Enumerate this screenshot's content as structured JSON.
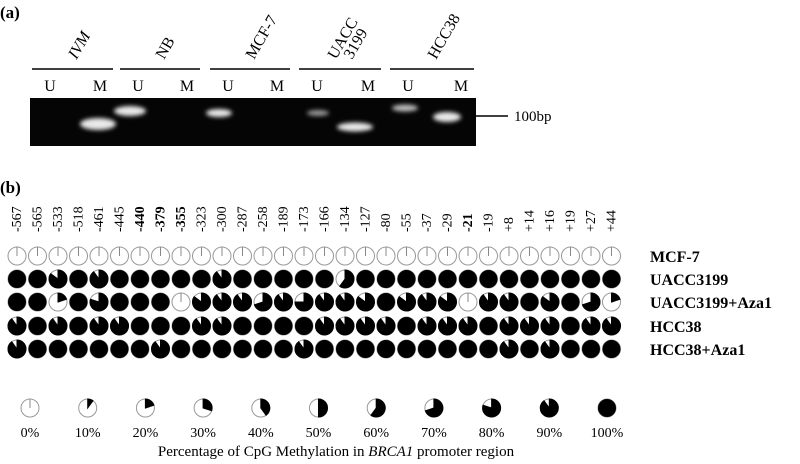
{
  "panel_a": {
    "label": "(a)",
    "samples": [
      {
        "lines": [
          "IVM"
        ],
        "lanes": [
          "U",
          "M"
        ]
      },
      {
        "lines": [
          "NB"
        ],
        "lanes": [
          "U",
          "M"
        ]
      },
      {
        "lines": [
          "MCF-7"
        ],
        "lanes": [
          "U",
          "M"
        ]
      },
      {
        "lines": [
          "UACC",
          "3199"
        ],
        "lanes": [
          "U",
          "M"
        ]
      },
      {
        "lines": [
          "HCC38"
        ],
        "lanes": [
          "U",
          "M"
        ]
      }
    ],
    "marker": "100bp"
  },
  "panel_b": {
    "label": "(b)",
    "positions": [
      {
        "text": "-567",
        "bold": false
      },
      {
        "text": "-565",
        "bold": false
      },
      {
        "text": "-533",
        "bold": false
      },
      {
        "text": "-518",
        "bold": false
      },
      {
        "text": "-461",
        "bold": false
      },
      {
        "text": "-445",
        "bold": false
      },
      {
        "text": "-440",
        "bold": true
      },
      {
        "text": "-379",
        "bold": true
      },
      {
        "text": "-355",
        "bold": true
      },
      {
        "text": "-323",
        "bold": false
      },
      {
        "text": "-300",
        "bold": false
      },
      {
        "text": "-287",
        "bold": false
      },
      {
        "text": "-258",
        "bold": false
      },
      {
        "text": "-189",
        "bold": false
      },
      {
        "text": "-173",
        "bold": false
      },
      {
        "text": "-166",
        "bold": false
      },
      {
        "text": "-134",
        "bold": false
      },
      {
        "text": "-127",
        "bold": false
      },
      {
        "text": "-80",
        "bold": false
      },
      {
        "text": "-55",
        "bold": false
      },
      {
        "text": "-37",
        "bold": false
      },
      {
        "text": "-29",
        "bold": false
      },
      {
        "text": "-21",
        "bold": true
      },
      {
        "text": "-19",
        "bold": false
      },
      {
        "text": "+8",
        "bold": false
      },
      {
        "text": "+14",
        "bold": false
      },
      {
        "text": "+16",
        "bold": false
      },
      {
        "text": "+19",
        "bold": false
      },
      {
        "text": "+27",
        "bold": false
      },
      {
        "text": "+44",
        "bold": false
      }
    ],
    "rows": [
      {
        "name": "MCF-7",
        "values": [
          0,
          0,
          0,
          0,
          0,
          0,
          0,
          0,
          0,
          0,
          0,
          0,
          0,
          0,
          0,
          0,
          0,
          0,
          0,
          0,
          0,
          0,
          0,
          0,
          0,
          0,
          0,
          0,
          0,
          0
        ]
      },
      {
        "name": "UACC3199",
        "values": [
          100,
          100,
          85,
          100,
          90,
          100,
          100,
          100,
          100,
          100,
          90,
          100,
          100,
          100,
          100,
          100,
          60,
          100,
          100,
          100,
          100,
          100,
          100,
          100,
          100,
          100,
          100,
          100,
          100,
          100
        ]
      },
      {
        "name": "UACC3199+Aza1",
        "values": [
          100,
          100,
          20,
          100,
          80,
          100,
          100,
          100,
          0,
          85,
          90,
          90,
          70,
          90,
          75,
          90,
          90,
          85,
          100,
          85,
          90,
          85,
          0,
          90,
          90,
          100,
          85,
          100,
          70,
          20
        ]
      },
      {
        "name": "HCC38",
        "values": [
          90,
          100,
          90,
          100,
          90,
          90,
          100,
          100,
          100,
          90,
          90,
          100,
          100,
          100,
          100,
          90,
          90,
          90,
          90,
          100,
          90,
          90,
          90,
          100,
          90,
          90,
          90,
          100,
          90,
          90
        ]
      },
      {
        "name": "HCC38+Aza1",
        "values": [
          90,
          100,
          100,
          100,
          100,
          100,
          100,
          90,
          100,
          100,
          100,
          100,
          100,
          100,
          90,
          100,
          100,
          100,
          100,
          100,
          100,
          100,
          100,
          100,
          90,
          100,
          90,
          100,
          100,
          100
        ]
      }
    ],
    "legend": [
      {
        "value": 0,
        "label": "0%"
      },
      {
        "value": 10,
        "label": "10%"
      },
      {
        "value": 20,
        "label": "20%"
      },
      {
        "value": 30,
        "label": "30%"
      },
      {
        "value": 40,
        "label": "40%"
      },
      {
        "value": 50,
        "label": "50%"
      },
      {
        "value": 60,
        "label": "60%"
      },
      {
        "value": 70,
        "label": "70%"
      },
      {
        "value": 80,
        "label": "80%"
      },
      {
        "value": 90,
        "label": "90%"
      },
      {
        "value": 100,
        "label": "100%"
      }
    ],
    "caption": {
      "before": "Percentage of CpG Methylation in ",
      "gene": "BRCA1",
      "after": " promoter region"
    }
  }
}
